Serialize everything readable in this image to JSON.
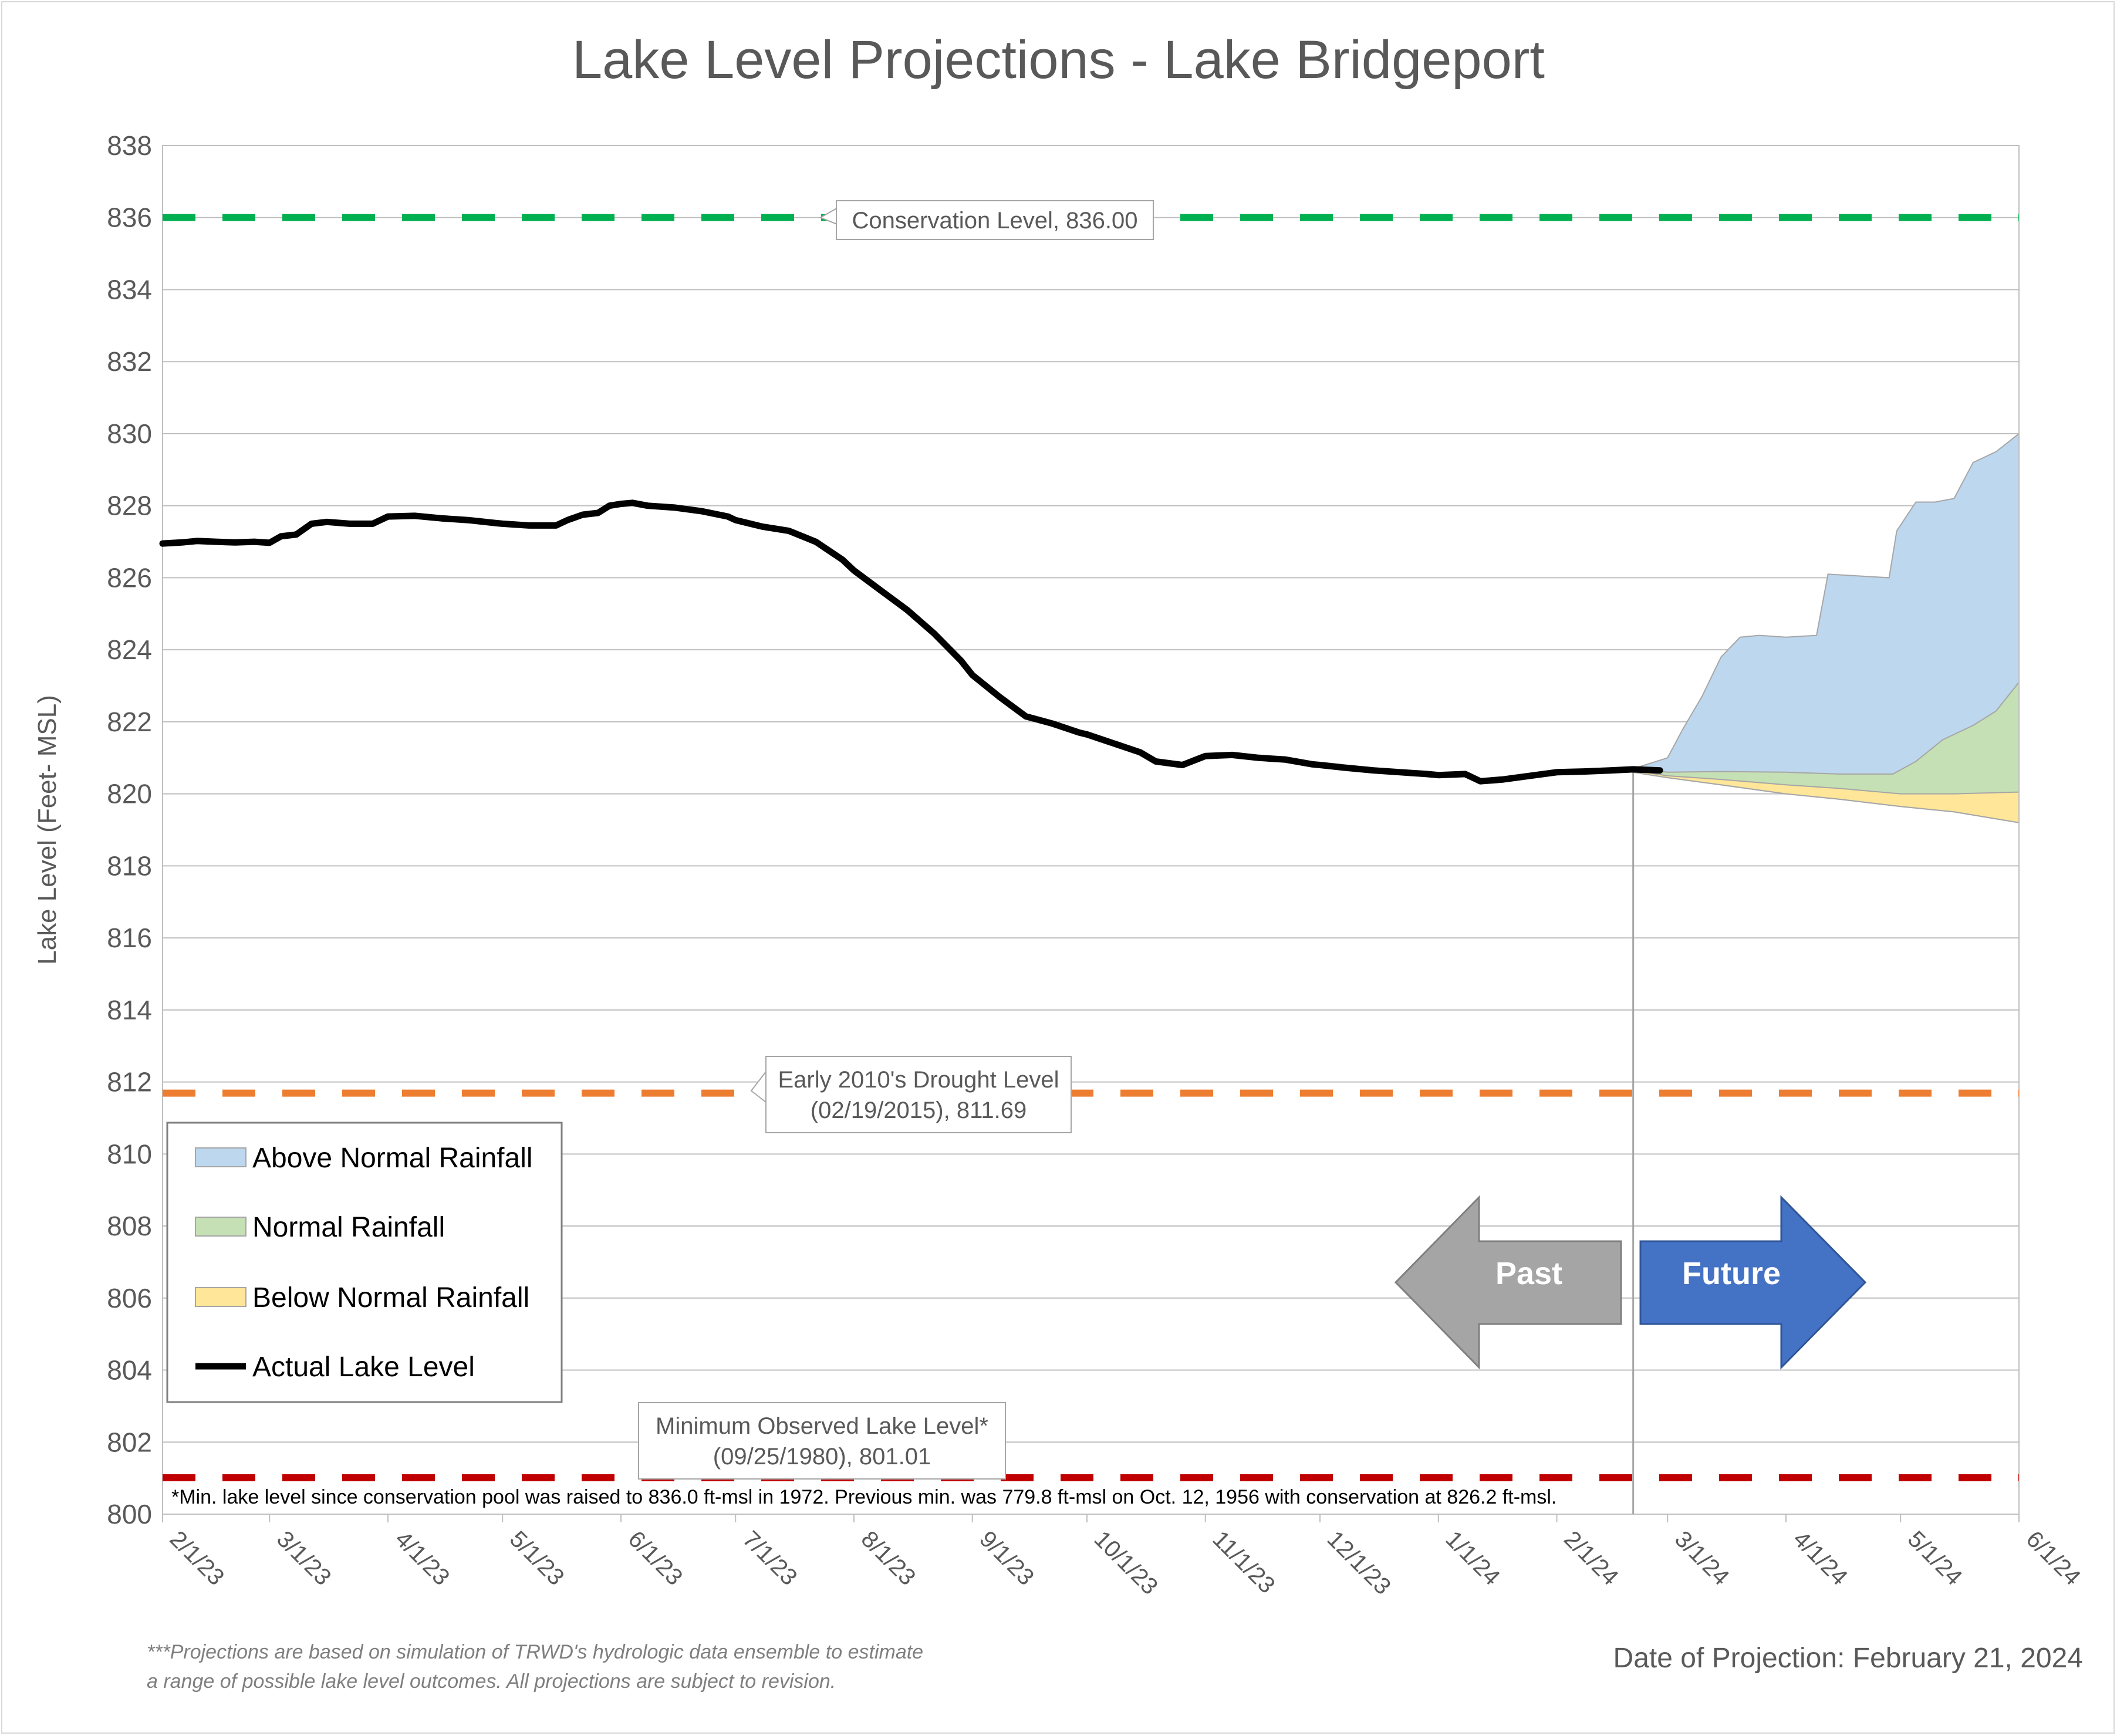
{
  "chart_data": {
    "type": "area",
    "title": "Lake Level Projections - Lake Bridgeport",
    "xlabel": "",
    "ylabel": "Lake Level (Feet- MSL)",
    "ylim": [
      800,
      838
    ],
    "xlim": [
      "2023-02-01",
      "2024-06-01"
    ],
    "y_ticks": [
      800,
      802,
      804,
      806,
      808,
      810,
      812,
      814,
      816,
      818,
      820,
      822,
      824,
      826,
      828,
      830,
      832,
      834,
      836,
      838
    ],
    "x_ticks": [
      {
        "date": "2023-02-01",
        "label": "2/1/23"
      },
      {
        "date": "2023-03-01",
        "label": "3/1/23"
      },
      {
        "date": "2023-04-01",
        "label": "4/1/23"
      },
      {
        "date": "2023-05-01",
        "label": "5/1/23"
      },
      {
        "date": "2023-06-01",
        "label": "6/1/23"
      },
      {
        "date": "2023-07-01",
        "label": "7/1/23"
      },
      {
        "date": "2023-08-01",
        "label": "8/1/23"
      },
      {
        "date": "2023-09-01",
        "label": "9/1/23"
      },
      {
        "date": "2023-10-01",
        "label": "10/1/23"
      },
      {
        "date": "2023-11-01",
        "label": "11/1/23"
      },
      {
        "date": "2023-12-01",
        "label": "12/1/23"
      },
      {
        "date": "2024-01-01",
        "label": "1/1/24"
      },
      {
        "date": "2024-02-01",
        "label": "2/1/24"
      },
      {
        "date": "2024-03-01",
        "label": "3/1/24"
      },
      {
        "date": "2024-04-01",
        "label": "4/1/24"
      },
      {
        "date": "2024-05-01",
        "label": "5/1/24"
      },
      {
        "date": "2024-06-01",
        "label": "6/1/24"
      }
    ],
    "grid": "horizontal",
    "legend_position": "bottom-left",
    "projection_date": "2024-02-21",
    "series": [
      {
        "name": "Actual Lake Level",
        "type": "line",
        "color": "#000000",
        "points": [
          [
            "2023-02-01",
            826.95
          ],
          [
            "2023-02-06",
            826.98
          ],
          [
            "2023-02-10",
            827.02
          ],
          [
            "2023-02-15",
            827.0
          ],
          [
            "2023-02-20",
            826.98
          ],
          [
            "2023-02-25",
            827.0
          ],
          [
            "2023-03-01",
            826.97
          ],
          [
            "2023-03-04",
            827.15
          ],
          [
            "2023-03-08",
            827.2
          ],
          [
            "2023-03-12",
            827.5
          ],
          [
            "2023-03-16",
            827.55
          ],
          [
            "2023-03-22",
            827.5
          ],
          [
            "2023-03-28",
            827.5
          ],
          [
            "2023-04-01",
            827.7
          ],
          [
            "2023-04-08",
            827.72
          ],
          [
            "2023-04-15",
            827.65
          ],
          [
            "2023-04-22",
            827.6
          ],
          [
            "2023-04-29",
            827.52
          ],
          [
            "2023-05-01",
            827.5
          ],
          [
            "2023-05-08",
            827.45
          ],
          [
            "2023-05-15",
            827.45
          ],
          [
            "2023-05-18",
            827.6
          ],
          [
            "2023-05-22",
            827.75
          ],
          [
            "2023-05-26",
            827.8
          ],
          [
            "2023-05-29",
            828.0
          ],
          [
            "2023-06-01",
            828.05
          ],
          [
            "2023-06-04",
            828.08
          ],
          [
            "2023-06-08",
            828.0
          ],
          [
            "2023-06-15",
            827.95
          ],
          [
            "2023-06-22",
            827.85
          ],
          [
            "2023-06-29",
            827.7
          ],
          [
            "2023-07-01",
            827.6
          ],
          [
            "2023-07-08",
            827.42
          ],
          [
            "2023-07-15",
            827.3
          ],
          [
            "2023-07-22",
            827.0
          ],
          [
            "2023-07-29",
            826.5
          ],
          [
            "2023-08-01",
            826.2
          ],
          [
            "2023-08-08",
            825.65
          ],
          [
            "2023-08-15",
            825.1
          ],
          [
            "2023-08-22",
            824.45
          ],
          [
            "2023-08-29",
            823.7
          ],
          [
            "2023-09-01",
            823.3
          ],
          [
            "2023-09-08",
            822.7
          ],
          [
            "2023-09-15",
            822.15
          ],
          [
            "2023-09-22",
            821.95
          ],
          [
            "2023-09-29",
            821.7
          ],
          [
            "2023-10-01",
            821.65
          ],
          [
            "2023-10-08",
            821.4
          ],
          [
            "2023-10-15",
            821.15
          ],
          [
            "2023-10-19",
            820.9
          ],
          [
            "2023-10-26",
            820.8
          ],
          [
            "2023-11-01",
            821.05
          ],
          [
            "2023-11-08",
            821.08
          ],
          [
            "2023-11-15",
            821.0
          ],
          [
            "2023-11-22",
            820.95
          ],
          [
            "2023-11-29",
            820.82
          ],
          [
            "2023-12-01",
            820.8
          ],
          [
            "2023-12-08",
            820.72
          ],
          [
            "2023-12-15",
            820.65
          ],
          [
            "2023-12-22",
            820.6
          ],
          [
            "2023-12-29",
            820.55
          ],
          [
            "2024-01-01",
            820.52
          ],
          [
            "2024-01-08",
            820.55
          ],
          [
            "2024-01-12",
            820.35
          ],
          [
            "2024-01-18",
            820.4
          ],
          [
            "2024-01-25",
            820.5
          ],
          [
            "2024-02-01",
            820.6
          ],
          [
            "2024-02-08",
            820.62
          ],
          [
            "2024-02-15",
            820.65
          ],
          [
            "2024-02-21",
            820.68
          ],
          [
            "2024-02-28",
            820.65
          ]
        ]
      },
      {
        "name": "Above Normal Rainfall",
        "type": "area",
        "color": "#bdd7ee",
        "upper": [
          [
            "2024-02-21",
            820.7
          ],
          [
            "2024-03-01",
            821.0
          ],
          [
            "2024-03-05",
            821.8
          ],
          [
            "2024-03-10",
            822.7
          ],
          [
            "2024-03-15",
            823.8
          ],
          [
            "2024-03-20",
            824.35
          ],
          [
            "2024-03-25",
            824.4
          ],
          [
            "2024-04-01",
            824.35
          ],
          [
            "2024-04-09",
            824.4
          ],
          [
            "2024-04-12",
            826.1
          ],
          [
            "2024-04-20",
            826.05
          ],
          [
            "2024-04-28",
            826.0
          ],
          [
            "2024-04-30",
            827.3
          ],
          [
            "2024-05-05",
            828.1
          ],
          [
            "2024-05-10",
            828.1
          ],
          [
            "2024-05-15",
            828.2
          ],
          [
            "2024-05-20",
            829.2
          ],
          [
            "2024-05-26",
            829.5
          ],
          [
            "2024-06-01",
            830.0
          ]
        ]
      },
      {
        "name": "Normal Rainfall",
        "type": "area",
        "color": "#c5e0b4",
        "upper": [
          [
            "2024-02-21",
            820.7
          ],
          [
            "2024-03-01",
            820.6
          ],
          [
            "2024-03-15",
            820.62
          ],
          [
            "2024-04-01",
            820.6
          ],
          [
            "2024-04-15",
            820.55
          ],
          [
            "2024-04-29",
            820.55
          ],
          [
            "2024-05-05",
            820.9
          ],
          [
            "2024-05-12",
            821.5
          ],
          [
            "2024-05-20",
            821.9
          ],
          [
            "2024-05-26",
            822.3
          ],
          [
            "2024-06-01",
            823.1
          ]
        ]
      },
      {
        "name": "Below Normal Rainfall",
        "type": "area",
        "color": "#ffe699",
        "upper": [
          [
            "2024-02-21",
            820.65
          ],
          [
            "2024-03-01",
            820.5
          ],
          [
            "2024-03-15",
            820.4
          ],
          [
            "2024-04-01",
            820.25
          ],
          [
            "2024-04-15",
            820.15
          ],
          [
            "2024-05-01",
            820.0
          ],
          [
            "2024-05-15",
            820.0
          ],
          [
            "2024-06-01",
            820.05
          ]
        ],
        "lower": [
          [
            "2024-02-21",
            820.6
          ],
          [
            "2024-03-01",
            820.45
          ],
          [
            "2024-03-15",
            820.25
          ],
          [
            "2024-04-01",
            820.0
          ],
          [
            "2024-04-15",
            819.85
          ],
          [
            "2024-05-01",
            819.65
          ],
          [
            "2024-05-15",
            819.5
          ],
          [
            "2024-06-01",
            819.2
          ]
        ]
      }
    ],
    "reference_lines": [
      {
        "value": 836.0,
        "color": "#00b050",
        "label": "Conservation Level, 836.00"
      },
      {
        "value": 811.69,
        "color": "#ed7d31",
        "label": "Early 2010's Drought Level\n(02/19/2015), 811.69"
      },
      {
        "value": 801.01,
        "color": "#c00000",
        "label": "Minimum Observed Lake Level*\n(09/25/1980), 801.01"
      }
    ],
    "annotations": {
      "past_label": "Past",
      "future_label": "Future",
      "past_color": "#a5a5a5",
      "future_color": "#4472c4",
      "min_note": "*Min. lake level since conservation pool was raised to 836.0 ft-msl in 1972.  Previous min. was 779.8 ft-msl on Oct. 12, 1956 with conservation at 826.2 ft-msl."
    }
  },
  "footnote": {
    "line1": "***Projections are based on simulation of TRWD's hydrologic data ensemble to estimate",
    "line2": "a range of possible lake level outcomes.  All projections are subject to revision."
  },
  "date_of_projection_text": "Date of Projection: February 21, 2024"
}
